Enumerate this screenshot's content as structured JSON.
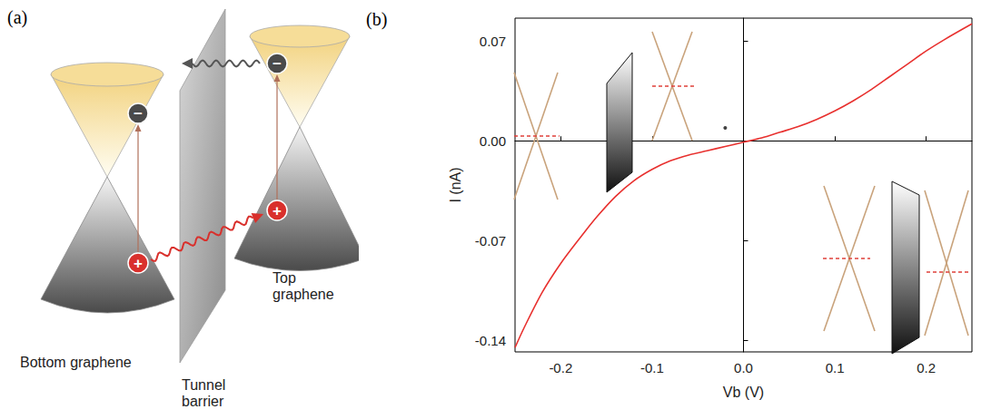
{
  "diagram": {
    "label": "(a)",
    "texts": {
      "bottom": "Bottom graphene",
      "barrier": "Tunnel barrier",
      "top": "Top graphene",
      "electron": "−",
      "hole": "+"
    }
  },
  "chart_data": {
    "label": "(b)",
    "type": "line",
    "xlabel": "Vb (V)",
    "ylabel": "I (nA)",
    "xlim": [
      -0.25,
      0.25
    ],
    "xticks": [
      -0.2,
      -0.1,
      {
        "value": 0,
        "label": "0.0"
      },
      0.1,
      0.2
    ],
    "ylim": [
      -0.148,
      0.086
    ],
    "yticks": [
      -0.14,
      -0.07,
      {
        "value": 0,
        "label": "0.00"
      },
      0.07
    ],
    "grid": false,
    "series": [
      {
        "type": "line",
        "color": "#e8312f",
        "marker": "none",
        "line_style": "solid",
        "x": [
          -0.25,
          -0.24,
          -0.22,
          -0.2,
          -0.18,
          -0.16,
          -0.14,
          -0.12,
          -0.1,
          -0.08,
          -0.06,
          -0.04,
          -0.02,
          0,
          0.02,
          0.04,
          0.06,
          0.08,
          0.1,
          0.12,
          0.14,
          0.16,
          0.18,
          0.2,
          0.22,
          0.25
        ],
        "values": [
          -0.145,
          -0.131,
          -0.106,
          -0.086,
          -0.069,
          -0.053,
          -0.039,
          -0.028,
          -0.02,
          -0.014,
          -0.01,
          -0.007,
          -0.004,
          -0.001,
          0.002,
          0.006,
          0.01,
          0.015,
          0.021,
          0.028,
          0.036,
          0.045,
          0.054,
          0.063,
          0.071,
          0.082
        ]
      },
      {
        "type": "scatter",
        "color": "#111111",
        "marker": "circle",
        "x": [
          -0.02
        ],
        "values": [
          0.009
        ]
      }
    ]
  }
}
